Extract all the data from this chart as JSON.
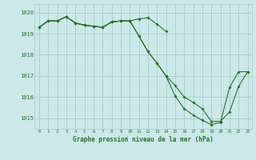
{
  "title": "Graphe pression niveau de la mer (hPa)",
  "bg_color": "#cce8e8",
  "grid_color": "#aacccc",
  "line_color": "#2d6e2d",
  "xlim": [
    -0.5,
    23.5
  ],
  "ylim": [
    1014.5,
    1020.4
  ],
  "yticks": [
    1015,
    1016,
    1017,
    1018,
    1019,
    1020
  ],
  "xticks": [
    0,
    1,
    2,
    3,
    4,
    5,
    6,
    7,
    8,
    9,
    10,
    11,
    12,
    13,
    14,
    15,
    16,
    17,
    18,
    19,
    20,
    21,
    22,
    23
  ],
  "series1_x": [
    0,
    1,
    2,
    3,
    4,
    5,
    6,
    7,
    8,
    9,
    10,
    11,
    12,
    13,
    14
  ],
  "series1_y": [
    1019.3,
    1019.6,
    1019.6,
    1019.8,
    1019.5,
    1019.4,
    1019.35,
    1019.3,
    1019.55,
    1019.6,
    1019.6,
    1019.7,
    1019.75,
    1019.45,
    1019.1
  ],
  "series2_x": [
    0,
    1,
    2,
    3,
    4,
    5,
    6,
    7,
    8,
    9,
    10,
    11,
    12,
    13,
    14,
    15,
    16,
    17,
    18,
    19,
    20,
    21,
    22,
    23
  ],
  "series2_y": [
    1019.3,
    1019.6,
    1019.6,
    1019.8,
    1019.5,
    1019.4,
    1019.35,
    1019.3,
    1019.55,
    1019.6,
    1019.6,
    1018.9,
    1018.15,
    1017.6,
    1017.0,
    1016.55,
    1016.0,
    1015.75,
    1015.45,
    1014.85,
    1014.85,
    1015.3,
    1016.5,
    1017.2
  ],
  "series3_x": [
    0,
    1,
    2,
    3,
    4,
    5,
    6,
    7,
    8,
    9,
    10,
    11,
    12,
    13,
    14,
    15,
    16,
    17,
    18,
    19,
    20,
    21,
    22,
    23
  ],
  "series3_y": [
    1019.3,
    1019.6,
    1019.6,
    1019.8,
    1019.5,
    1019.4,
    1019.35,
    1019.3,
    1019.55,
    1019.6,
    1019.6,
    1018.9,
    1018.15,
    1017.6,
    1017.0,
    1016.05,
    1015.45,
    1015.15,
    1014.9,
    1014.7,
    1014.8,
    1016.45,
    1017.2,
    1017.2
  ]
}
